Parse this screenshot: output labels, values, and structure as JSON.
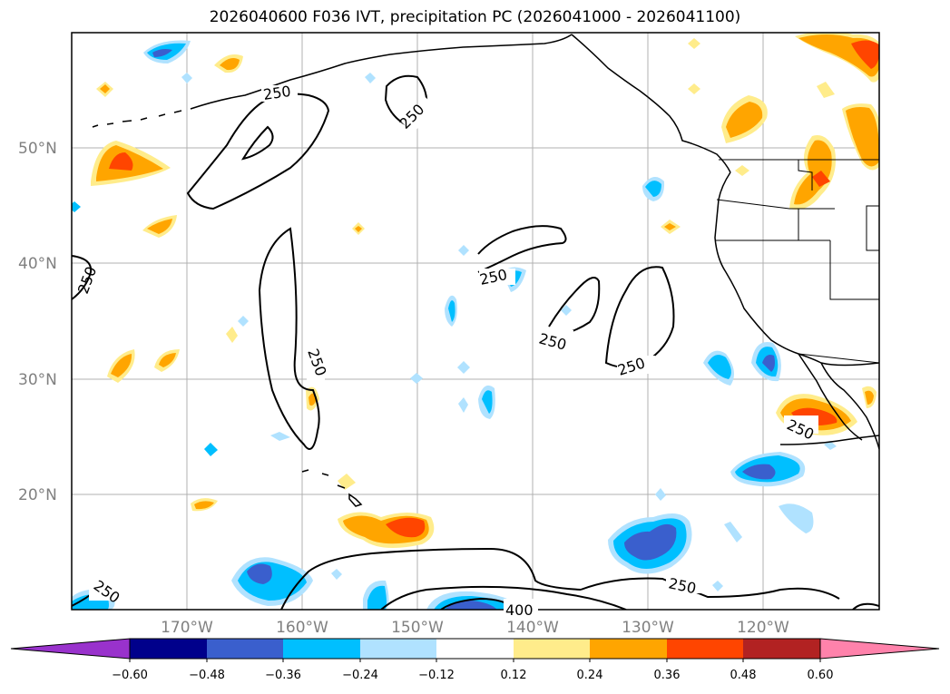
{
  "title": "2026040600 F036 IVT, precipitation PC (2026041000 - 2026041100)",
  "map": {
    "lat_labels": [
      "50°N",
      "40°N",
      "30°N",
      "20°N"
    ],
    "lon_labels": [
      "170°W",
      "160°W",
      "150°W",
      "140°W",
      "130°W",
      "120°W"
    ],
    "contour_labels": [
      "250",
      "250",
      "250",
      "250",
      "250",
      "250",
      "250",
      "250",
      "250",
      "250",
      "400"
    ],
    "contour_colors": {
      "line": "#000000"
    }
  },
  "colorbar": {
    "colors": [
      "#9932cc",
      "#00008b",
      "#3a5fcd",
      "#00bfff",
      "#b0e2ff",
      "#ffffff",
      "#ffec8b",
      "#ffa500",
      "#ff4500",
      "#b22222",
      "#ff82ab"
    ],
    "tick_labels": [
      "−0.60",
      "−0.48",
      "−0.36",
      "−0.24",
      "−0.12",
      "0.12",
      "0.24",
      "0.36",
      "0.48",
      "0.60"
    ]
  }
}
